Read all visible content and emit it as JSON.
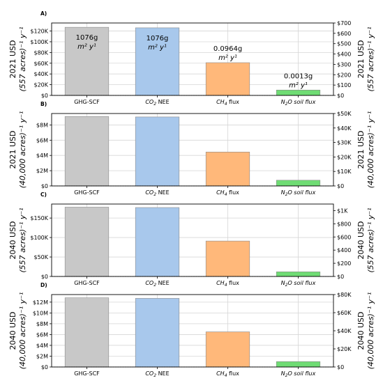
{
  "chart_data": [
    {
      "type": "bar",
      "panel_label": "A)",
      "categories": [
        "GHG-SCF",
        "CO2 NEE",
        "CH4 flux",
        "N2O soil flux"
      ],
      "values": [
        127000,
        126000,
        61000,
        10000
      ],
      "colors": [
        "#c8c8c8",
        "#a8c8ec",
        "#ffb87a",
        "#6fdc74"
      ],
      "annotations": [
        {
          "line1": "1076g",
          "line2": "m² y¹"
        },
        {
          "line1": "1076g",
          "line2": "m² y¹"
        },
        {
          "line1": "0.0964g",
          "line2": "m² y¹"
        },
        {
          "line1": "0.0013g",
          "line2": "m² y¹"
        }
      ],
      "ylabel": "2021 USD\n(557 acres)⁻¹ y⁻¹",
      "ylabel_right": "2021 USD\n(557 acres)⁻¹ y⁻¹",
      "ylim": [
        0,
        135000
      ],
      "yticks": [
        0,
        20000,
        40000,
        60000,
        80000,
        100000,
        120000
      ],
      "ytick_labels": [
        "$0",
        "$20K",
        "$40K",
        "$60K",
        "$80K",
        "$100K",
        "$120K"
      ],
      "ylim_right": [
        0,
        700
      ],
      "yticks_right": [
        0,
        100,
        200,
        300,
        400,
        500,
        600,
        700
      ],
      "ytick_labels_right": [
        "$0",
        "$100",
        "$200",
        "$300",
        "$400",
        "$500",
        "$600",
        "$700"
      ],
      "grid": true
    },
    {
      "type": "bar",
      "panel_label": "B)",
      "categories": [
        "GHG-SCF",
        "CO2 NEE",
        "CH4 flux",
        "N2O soil flux"
      ],
      "values": [
        9100000,
        9050000,
        4450000,
        750000
      ],
      "colors": [
        "#c8c8c8",
        "#a8c8ec",
        "#ffb87a",
        "#6fdc74"
      ],
      "ylabel": "2021 USD\n(40,000 acres)⁻¹ y⁻¹",
      "ylabel_right": "2021 USD\n(40,000 acres)⁻¹ y⁻¹",
      "ylim": [
        0,
        9500000
      ],
      "yticks": [
        0,
        2000000,
        4000000,
        6000000,
        8000000
      ],
      "ytick_labels": [
        "$0",
        "$2M",
        "$4M",
        "$6M",
        "$8M"
      ],
      "ylim_right": [
        0,
        50000
      ],
      "yticks_right": [
        0,
        10000,
        20000,
        30000,
        40000,
        50000
      ],
      "ytick_labels_right": [
        "$0",
        "$10K",
        "$20K",
        "$30K",
        "$40K",
        "$50K"
      ],
      "grid": true
    },
    {
      "type": "bar",
      "panel_label": "C)",
      "categories": [
        "GHG-SCF",
        "CO2 NEE",
        "CH4 flux",
        "N2O soil flux"
      ],
      "values": [
        178000,
        177000,
        91000,
        12000
      ],
      "colors": [
        "#c8c8c8",
        "#a8c8ec",
        "#ffb87a",
        "#6fdc74"
      ],
      "ylabel": "2040 USD\n(557 acres)⁻¹ y⁻¹",
      "ylabel_right": "2040 USD\n(557 acres)⁻¹ y⁻¹",
      "ylim": [
        0,
        186000
      ],
      "yticks": [
        0,
        50000,
        100000,
        150000
      ],
      "ytick_labels": [
        "$0",
        "$50K",
        "$100K",
        "$150K"
      ],
      "ylim_right": [
        0,
        1100
      ],
      "yticks_right": [
        0,
        200,
        400,
        600,
        800,
        1000
      ],
      "ytick_labels_right": [
        "$0",
        "$200",
        "$400",
        "$600",
        "$800",
        "$1K"
      ],
      "grid": true
    },
    {
      "type": "bar",
      "panel_label": "D)",
      "categories": [
        "GHG-SCF",
        "CO2 NEE",
        "CH4 flux",
        "N2O soil flux"
      ],
      "values": [
        12800000,
        12700000,
        6500000,
        1000000
      ],
      "colors": [
        "#c8c8c8",
        "#a8c8ec",
        "#ffb87a",
        "#6fdc74"
      ],
      "ylabel": "2040 USD\n(40,000 acres)⁻¹ y⁻¹",
      "ylabel_right": "2040 USD\n(40,000 acres)⁻¹ y⁻¹",
      "ylim": [
        0,
        13400000
      ],
      "yticks": [
        0,
        2000000,
        4000000,
        6000000,
        8000000,
        10000000,
        12000000
      ],
      "ytick_labels": [
        "$0",
        "$2M",
        "$4M",
        "$6M",
        "$8M",
        "$10M",
        "$12M"
      ],
      "ylim_right": [
        0,
        80000
      ],
      "yticks_right": [
        0,
        20000,
        40000,
        60000,
        80000
      ],
      "ytick_labels_right": [
        "$0",
        "$20K",
        "$40K",
        "$60K",
        "$80K"
      ],
      "grid": true
    }
  ]
}
